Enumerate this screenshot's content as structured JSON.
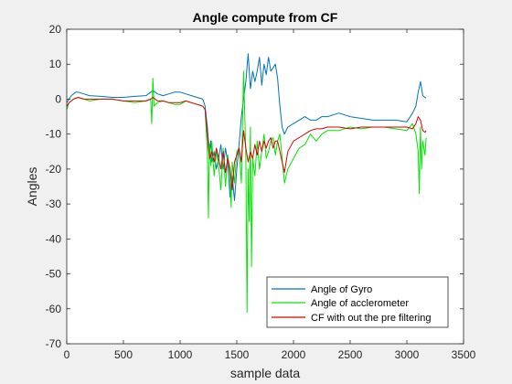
{
  "chart_data": {
    "type": "line",
    "title": "Angle compute from CF",
    "xlabel": "sample data",
    "ylabel": "Angles",
    "xlim": [
      0,
      3500
    ],
    "ylim": [
      -70,
      20
    ],
    "xticks": [
      0,
      500,
      1000,
      1500,
      2000,
      2500,
      3000,
      3500
    ],
    "yticks": [
      20,
      10,
      0,
      -10,
      -20,
      -30,
      -40,
      -50,
      -60,
      -70
    ],
    "grid": false,
    "legend_position": "bottom-right",
    "series": [
      {
        "name": "Angle of Gyro",
        "color": "#0072bd",
        "x": [
          0,
          20,
          40,
          60,
          80,
          100,
          150,
          200,
          300,
          400,
          500,
          600,
          700,
          740,
          760,
          780,
          800,
          850,
          900,
          950,
          1000,
          1050,
          1100,
          1150,
          1200,
          1220,
          1240,
          1250,
          1260,
          1270,
          1280,
          1300,
          1320,
          1340,
          1360,
          1380,
          1400,
          1420,
          1440,
          1460,
          1480,
          1500,
          1520,
          1540,
          1560,
          1580,
          1600,
          1620,
          1640,
          1660,
          1680,
          1700,
          1720,
          1740,
          1760,
          1780,
          1800,
          1820,
          1840,
          1860,
          1880,
          1900,
          1920,
          1950,
          2000,
          2050,
          2100,
          2150,
          2200,
          2250,
          2300,
          2400,
          2500,
          2600,
          2700,
          2800,
          2900,
          3000,
          3050,
          3080,
          3100,
          3120,
          3140,
          3160,
          3170
        ],
        "y": [
          -1,
          0,
          1,
          1.5,
          2,
          2,
          1.5,
          1,
          0.8,
          0.5,
          0.5,
          0.8,
          1,
          2,
          2.5,
          2,
          1.5,
          1,
          1.5,
          2,
          2,
          1.5,
          1,
          0.5,
          0,
          -2,
          -8,
          -12,
          -15,
          -12,
          -18,
          -15,
          -20,
          -17,
          -13,
          -20,
          -14,
          -18,
          -28,
          -22,
          -29,
          -20,
          -13,
          -5,
          0,
          5,
          13,
          3,
          8,
          5,
          8,
          12,
          4,
          10,
          7,
          12,
          8,
          9,
          10,
          6,
          -2,
          -8,
          -10,
          -8,
          -7,
          -6,
          -5,
          -6,
          -6,
          -5,
          -5,
          -4,
          -5,
          -5.5,
          -6,
          -6,
          -6,
          -6.5,
          -4,
          -2,
          2,
          5,
          1,
          0.5,
          0.3
        ]
      },
      {
        "name": "Angle of acclerometer",
        "color": "#00e600",
        "x": [
          0,
          20,
          40,
          60,
          100,
          150,
          200,
          300,
          400,
          500,
          600,
          700,
          740,
          750,
          760,
          770,
          800,
          850,
          900,
          950,
          1000,
          1050,
          1100,
          1150,
          1200,
          1220,
          1240,
          1250,
          1255,
          1260,
          1270,
          1280,
          1300,
          1320,
          1340,
          1360,
          1380,
          1400,
          1420,
          1440,
          1450,
          1460,
          1480,
          1500,
          1520,
          1540,
          1560,
          1580,
          1590,
          1600,
          1610,
          1620,
          1630,
          1640,
          1660,
          1680,
          1700,
          1720,
          1740,
          1760,
          1780,
          1800,
          1820,
          1840,
          1860,
          1880,
          1900,
          1920,
          1950,
          2000,
          2050,
          2100,
          2150,
          2200,
          2250,
          2300,
          2400,
          2500,
          2600,
          2700,
          2800,
          2900,
          3000,
          3050,
          3080,
          3100,
          3110,
          3120,
          3130,
          3140,
          3160,
          3170
        ],
        "y": [
          -3,
          -1,
          -0.5,
          0,
          0.5,
          0,
          -0.5,
          0,
          0,
          -0.5,
          -1,
          -0.5,
          0,
          -7,
          6,
          -2,
          -1,
          -0.5,
          -1,
          -1.5,
          -1.5,
          -0.5,
          -1,
          -1.5,
          -2,
          -3,
          -15,
          -34,
          -20,
          -13,
          -19,
          -12,
          -22,
          -15,
          -19,
          -26,
          -14,
          -25,
          -16,
          -22,
          -31,
          -18,
          -24,
          -15,
          -14,
          -24,
          8,
          -16,
          -61,
          -20,
          -35,
          -8,
          -48,
          -17,
          -22,
          -12,
          -20,
          -15,
          -10,
          -17,
          -15,
          -12,
          -11,
          -16,
          -12,
          -10,
          -17,
          -24,
          -20,
          -17,
          -14,
          -13,
          -10,
          -12,
          -10,
          -9,
          -9,
          -8,
          -8.5,
          -8,
          -8,
          -8.5,
          -9,
          -7,
          -10,
          -15,
          -27,
          -8,
          -20,
          -12,
          -16,
          -11
        ]
      },
      {
        "name": "CF with out the pre filtering",
        "color": "#d90000",
        "x": [
          0,
          20,
          40,
          60,
          100,
          150,
          200,
          300,
          400,
          500,
          600,
          700,
          740,
          760,
          780,
          800,
          850,
          900,
          950,
          1000,
          1050,
          1100,
          1150,
          1200,
          1220,
          1240,
          1250,
          1260,
          1280,
          1300,
          1320,
          1340,
          1360,
          1380,
          1400,
          1420,
          1440,
          1460,
          1480,
          1500,
          1520,
          1540,
          1560,
          1580,
          1600,
          1620,
          1640,
          1660,
          1680,
          1700,
          1720,
          1740,
          1760,
          1780,
          1800,
          1820,
          1840,
          1860,
          1880,
          1900,
          1920,
          1950,
          2000,
          2050,
          2100,
          2150,
          2200,
          2250,
          2300,
          2400,
          2500,
          2600,
          2700,
          2800,
          2900,
          3000,
          3050,
          3080,
          3100,
          3120,
          3140,
          3160,
          3170
        ],
        "y": [
          -2,
          -1,
          -0.5,
          0,
          0.5,
          0,
          0,
          0,
          0,
          -0.5,
          -0.5,
          -0.5,
          0,
          0.5,
          0,
          -0.5,
          -0.5,
          -1,
          -1,
          -1,
          -0.5,
          -1,
          -1.5,
          -2,
          -3,
          -10,
          -14,
          -17,
          -15,
          -18,
          -14,
          -17,
          -20,
          -15,
          -21,
          -17,
          -20,
          -26,
          -18,
          -16,
          -14,
          -18,
          -9,
          -14,
          -18,
          -15,
          -17,
          -13,
          -16,
          -12,
          -15,
          -12,
          -14,
          -12,
          -11,
          -14,
          -12,
          -12,
          -15,
          -18,
          -21,
          -15,
          -12,
          -11,
          -10,
          -9,
          -8.5,
          -8.5,
          -8,
          -8,
          -8.5,
          -8,
          -8,
          -8,
          -8,
          -8,
          -8.5,
          -7,
          -5,
          -6,
          -9,
          -9.5,
          -9
        ]
      }
    ]
  }
}
